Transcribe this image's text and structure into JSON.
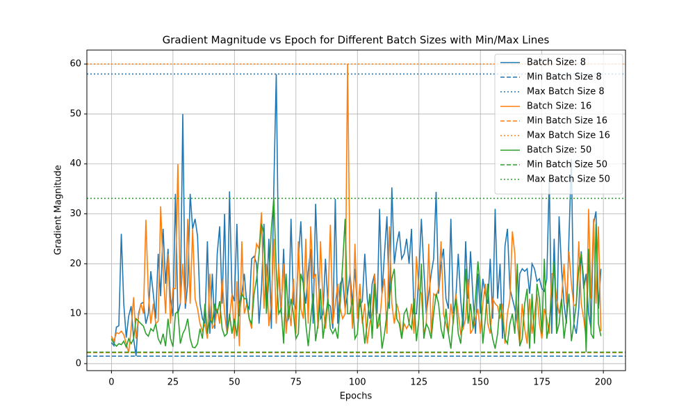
{
  "chart_data": {
    "type": "line",
    "title": "Gradient Magnitude vs Epoch for Different Batch Sizes with Min/Max Lines",
    "x_label": "Epochs",
    "y_label": "Gradient Magnitude",
    "xlim": [
      -10,
      209
    ],
    "ylim": [
      -1.4,
      62.8
    ],
    "xticks": [
      0,
      25,
      50,
      75,
      100,
      125,
      150,
      175,
      200
    ],
    "yticks": [
      0,
      10,
      20,
      30,
      40,
      50,
      60
    ],
    "grid": true,
    "legend": "upper right",
    "x": [
      0,
      1,
      2,
      3,
      4,
      5,
      6,
      7,
      8,
      9,
      10,
      11,
      12,
      13,
      14,
      15,
      16,
      17,
      18,
      19,
      20,
      21,
      22,
      23,
      24,
      25,
      26,
      27,
      28,
      29,
      30,
      31,
      32,
      33,
      34,
      35,
      36,
      37,
      38,
      39,
      40,
      41,
      42,
      43,
      44,
      45,
      46,
      47,
      48,
      49,
      50,
      51,
      52,
      53,
      54,
      55,
      56,
      57,
      58,
      59,
      60,
      61,
      62,
      63,
      64,
      65,
      66,
      67,
      68,
      69,
      70,
      71,
      72,
      73,
      74,
      75,
      76,
      77,
      78,
      79,
      80,
      81,
      82,
      83,
      84,
      85,
      86,
      87,
      88,
      89,
      90,
      91,
      92,
      93,
      94,
      95,
      96,
      97,
      98,
      99,
      100,
      101,
      102,
      103,
      104,
      105,
      106,
      107,
      108,
      109,
      110,
      111,
      112,
      113,
      114,
      115,
      116,
      117,
      118,
      119,
      120,
      121,
      122,
      123,
      124,
      125,
      126,
      127,
      128,
      129,
      130,
      131,
      132,
      133,
      134,
      135,
      136,
      137,
      138,
      139,
      140,
      141,
      142,
      143,
      144,
      145,
      146,
      147,
      148,
      149,
      150,
      151,
      152,
      153,
      154,
      155,
      156,
      157,
      158,
      159,
      160,
      161,
      162,
      163,
      164,
      165,
      166,
      167,
      168,
      169,
      170,
      171,
      172,
      173,
      174,
      175,
      176,
      177,
      178,
      179,
      180,
      181,
      182,
      183,
      184,
      185,
      186,
      187,
      188,
      189,
      190,
      191,
      192,
      193,
      194,
      195,
      196,
      197,
      198,
      199
    ],
    "series": [
      {
        "name": "Batch Size: 8",
        "color": "#1f77b4",
        "linestyle": "solid",
        "values": [
          4.2,
          3.6,
          7.3,
          7.6,
          26,
          12,
          5.2,
          9.5,
          11.5,
          5,
          1.5,
          10,
          12,
          12.3,
          8,
          10,
          18.5,
          14,
          9,
          22,
          13.5,
          27,
          16,
          23,
          13,
          9.5,
          34,
          10,
          12,
          50,
          11,
          16,
          34,
          27,
          29,
          25.5,
          12,
          9,
          8,
          24.5,
          6,
          18,
          7,
          22,
          27.5,
          12,
          30,
          6,
          34.5,
          14,
          12.5,
          28,
          9.5,
          14,
          18,
          12,
          11,
          21,
          21.5,
          20,
          8,
          15,
          28,
          12,
          25,
          7,
          35,
          58,
          18,
          10,
          23,
          8,
          9,
          29,
          12,
          11,
          21,
          28.5,
          16,
          12,
          18.5,
          23,
          8,
          32,
          18,
          9,
          10,
          21,
          12,
          11.5,
          7,
          33,
          8,
          16,
          17,
          11,
          14,
          18,
          12,
          19,
          11,
          11.5,
          12.5,
          22,
          13,
          9,
          16,
          18,
          10,
          31,
          14,
          22,
          29.5,
          11,
          35.3,
          20,
          24,
          26.5,
          21,
          22,
          25,
          20,
          27,
          10,
          10,
          18,
          29,
          19,
          10,
          14,
          18,
          21,
          34.4,
          14,
          20,
          23,
          13,
          11,
          29,
          10,
          13,
          22,
          12.8,
          7,
          24.5,
          13,
          22.5,
          13,
          6,
          18,
          10,
          17,
          14,
          12,
          21,
          9,
          31,
          13,
          20,
          5,
          23.5,
          27,
          15,
          13,
          11,
          8,
          18,
          19,
          18.5,
          19,
          14,
          20,
          19,
          16.5,
          17,
          15,
          14.5,
          17,
          37,
          6,
          25,
          6,
          29.5,
          19,
          12,
          8,
          25,
          41,
          8,
          6,
          11,
          22.5,
          15,
          18,
          10,
          7,
          28,
          30.5,
          11,
          19
        ]
      },
      {
        "name": "Min Batch Size 8",
        "color": "#1f77b4",
        "linestyle": "dashed",
        "value": 1.5
      },
      {
        "name": "Max Batch Size 8",
        "color": "#1f77b4",
        "linestyle": "dotted",
        "value": 58
      },
      {
        "name": "Batch Size: 16",
        "color": "#ff7f0e",
        "linestyle": "solid",
        "values": [
          5.5,
          4.5,
          6.2,
          6,
          6.5,
          5.8,
          4,
          2.2,
          7,
          13.3,
          5,
          9.5,
          12,
          10,
          28.8,
          14,
          8,
          12,
          8,
          8.5,
          31.5,
          19,
          10,
          22,
          8,
          15,
          15,
          40,
          12,
          20,
          12,
          29,
          12,
          27,
          13,
          11,
          8,
          6.5,
          8,
          5,
          18,
          7,
          8,
          11,
          8,
          17,
          10,
          6,
          9,
          14,
          5,
          16.5,
          3.5,
          24.5,
          10,
          12,
          9,
          7,
          20,
          24,
          23,
          30.3,
          11,
          20,
          7.5,
          12,
          25,
          8,
          20,
          11,
          20,
          6,
          12,
          7.5,
          17,
          6,
          24.5,
          11,
          9,
          25,
          8,
          27.5,
          17,
          18,
          7,
          24.5,
          12,
          7,
          12,
          27.8,
          8,
          12,
          16,
          11,
          9,
          10,
          60,
          17,
          7,
          24,
          9,
          16,
          8,
          12,
          4,
          8,
          10,
          18,
          7,
          8,
          14,
          17,
          6,
          27.5,
          12,
          8,
          12,
          10,
          5,
          8,
          7,
          8,
          12,
          6,
          21.5,
          15,
          14,
          6,
          8,
          24,
          6,
          14,
          13.5,
          15,
          24.5,
          10,
          8,
          6,
          12,
          8,
          14,
          10,
          6,
          7,
          9,
          17,
          6,
          7,
          9,
          11,
          6,
          12,
          16,
          8,
          6,
          13,
          12,
          11.5,
          9,
          12,
          4,
          10,
          13,
          26.5,
          22,
          8,
          4,
          12,
          7,
          4,
          13,
          6,
          10,
          14,
          8,
          5,
          11,
          9,
          6,
          18,
          18,
          13,
          10,
          13,
          20,
          12,
          22.5,
          16,
          11.5,
          12,
          24.5,
          12,
          9,
          5,
          31,
          13,
          29,
          12,
          27.5,
          6.5
        ]
      },
      {
        "name": "Min Batch Size 16",
        "color": "#ff7f0e",
        "linestyle": "dashed",
        "value": 2.2
      },
      {
        "name": "Max Batch Size 16",
        "color": "#ff7f0e",
        "linestyle": "dotted",
        "value": 60
      },
      {
        "name": "Batch Size: 50",
        "color": "#2ca02c",
        "linestyle": "solid",
        "values": [
          5,
          4,
          3.5,
          4,
          3.8,
          4.5,
          3.3,
          5,
          4,
          5,
          9,
          8.5,
          8,
          7.5,
          6,
          5.5,
          7,
          6.5,
          8,
          5,
          4,
          6,
          3.5,
          9,
          5,
          3.4,
          10,
          10.5,
          4,
          6,
          7,
          9,
          5,
          3.3,
          3.2,
          4,
          7,
          5,
          12,
          6,
          9,
          8,
          12,
          10,
          12.5,
          7,
          5.5,
          6,
          10,
          6,
          9,
          5.5,
          12,
          14,
          13,
          13,
          9,
          8,
          14,
          17,
          22,
          28,
          26,
          10,
          17,
          27,
          33.1,
          19,
          10,
          11,
          4,
          18,
          9,
          13,
          10,
          5,
          6,
          18,
          16,
          8,
          3.5,
          9,
          14,
          4.5,
          8,
          15,
          5,
          9,
          13,
          7,
          6,
          7,
          5,
          12,
          20,
          29,
          10,
          10,
          13,
          5,
          6,
          13,
          9,
          4,
          8,
          14,
          5,
          16,
          7,
          10,
          3,
          6,
          10,
          13,
          17,
          19,
          9,
          8,
          5,
          10,
          11,
          8,
          7,
          13,
          4.5,
          9,
          20,
          5,
          8,
          7,
          5,
          10,
          14,
          12,
          7,
          5,
          11,
          6,
          3,
          9,
          13,
          6,
          4,
          11,
          19,
          8,
          12,
          7,
          13,
          20.5,
          15,
          4,
          9,
          16,
          8,
          5,
          3,
          6,
          12,
          9,
          5,
          4,
          8,
          10,
          6,
          20,
          3.5,
          5,
          12,
          15,
          3,
          14,
          4,
          16,
          13,
          6,
          21,
          5,
          8,
          14,
          20.5,
          6,
          8,
          13,
          5,
          9,
          14,
          4.5,
          8,
          12,
          19,
          22,
          17,
          2.3,
          23,
          6,
          5,
          28,
          8,
          5.5
        ]
      },
      {
        "name": "Min Batch Size 50",
        "color": "#2ca02c",
        "linestyle": "dashed",
        "value": 2.3
      },
      {
        "name": "Max Batch Size 50",
        "color": "#2ca02c",
        "linestyle": "dotted",
        "value": 33.1
      }
    ]
  }
}
